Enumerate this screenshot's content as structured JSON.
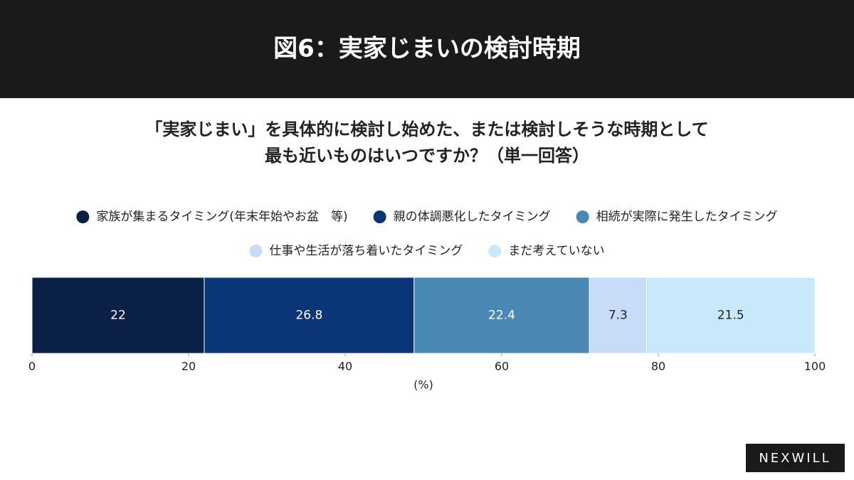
{
  "chart_data": {
    "type": "stacked_bar",
    "title": "図6：実家じまいの検討時期",
    "subtitle": [
      "「実家じまい」を具体的に検討し始めた、または検討しそうな時期として",
      "最も近いものはいつですか？（単一回答）"
    ],
    "series": [
      {
        "name": "家族が集まるタイミング(年末年始やお盆　等)",
        "color": "#0b2046",
        "values": [
          22
        ]
      },
      {
        "name": "親の体調悪化したタイミング",
        "color": "#0a3576",
        "values": [
          26.8
        ]
      },
      {
        "name": "相続が実際に発生したタイミング",
        "color": "#4a88b4",
        "values": [
          22.4
        ]
      },
      {
        "name": "仕事や生活が落ち着いたタイミング",
        "color": "#c6dcf8",
        "values": [
          7.3
        ]
      },
      {
        "name": "まだ考えていない",
        "color": "#c8e9fb",
        "values": [
          21.5
        ]
      }
    ],
    "xlim": [
      0,
      100
    ],
    "xticks": [
      0,
      20,
      40,
      60,
      80,
      100
    ],
    "xlabel": "(%)"
  },
  "brand": "NEXWILL"
}
